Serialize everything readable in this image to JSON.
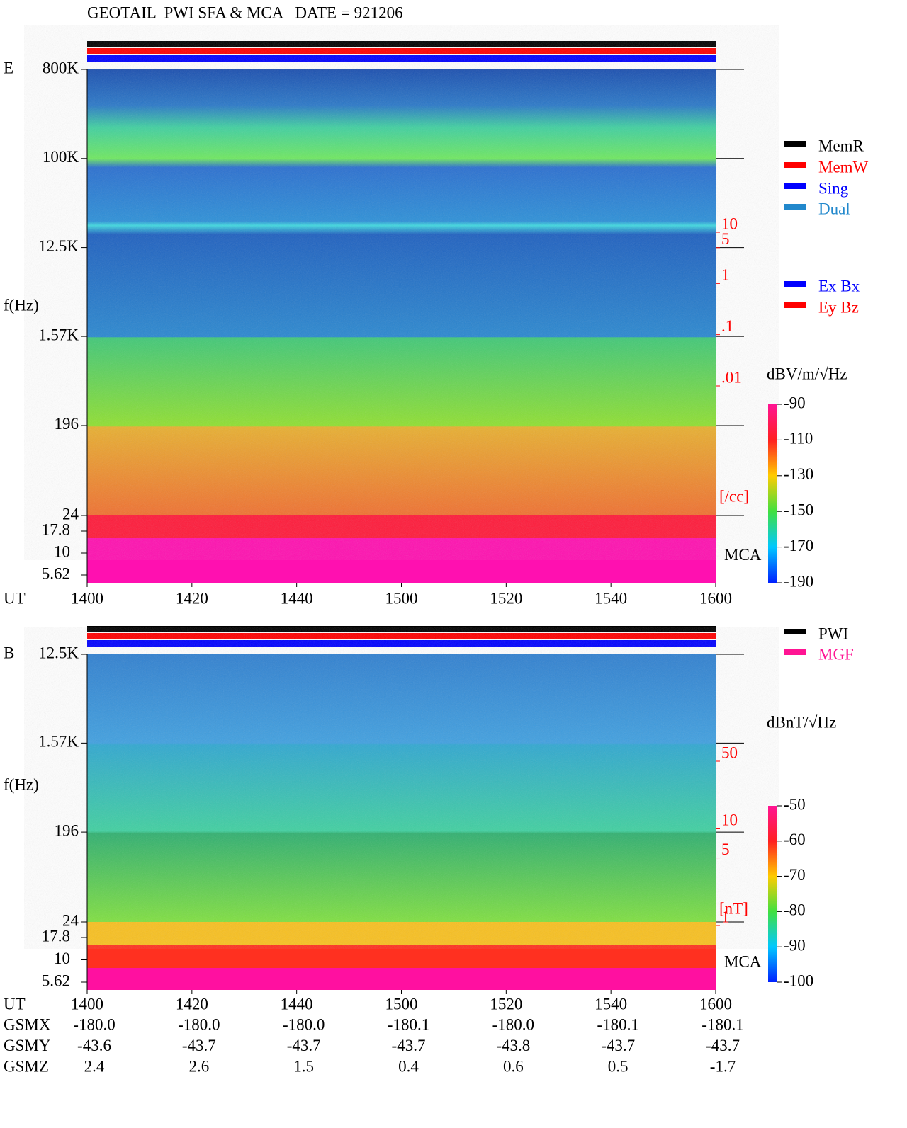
{
  "title": "GEOTAIL  PWI SFA & MCA   DATE = 921206",
  "chart_data": [
    {
      "type": "spectrogram",
      "panel_label": "E",
      "y_label": "f(Hz)",
      "x_label": "UT",
      "xtick_labels": [
        "1400",
        "1420",
        "1440",
        "1500",
        "1520",
        "1540",
        "1600"
      ],
      "yscale": "log",
      "ylim": [
        24,
        800000
      ],
      "yticks": [
        {
          "value": 800000,
          "label": "800K"
        },
        {
          "value": 100000,
          "label": "100K"
        },
        {
          "value": 12500,
          "label": "12.5K"
        },
        {
          "value": 1570,
          "label": "1.57K"
        },
        196,
        24
      ],
      "mca_label": "MCA",
      "mca_ticks": [
        17.8,
        10,
        5.62
      ],
      "y2ticks": [
        10,
        5,
        1,
        {
          "value": 0.1,
          "label": ".1"
        },
        {
          "value": 0.01,
          "label": ".01"
        }
      ],
      "y2_label": "[/cc]",
      "y2_color": "#ff0000",
      "colorbar": {
        "label": "dBV/m/√Hz",
        "lim": [
          -190,
          -90
        ],
        "ticks": [
          -90,
          -110,
          -130,
          -150,
          -170,
          -190
        ]
      },
      "legend": [
        {
          "name": "MemR",
          "color": "#000000"
        },
        {
          "name": "MemW",
          "color": "#ff0000"
        },
        {
          "name": "Sing",
          "color": "#0000ff"
        },
        {
          "name": "Dual",
          "color": "#2288cc"
        }
      ],
      "legend2": [
        {
          "name": "Ex Bx",
          "color": "#0000ff"
        },
        {
          "name": "Ey Bz",
          "color": "#ff0000"
        }
      ]
    },
    {
      "type": "spectrogram",
      "panel_label": "B",
      "y_label": "f(Hz)",
      "x_label": "UT",
      "xtick_labels": [
        "1400",
        "1420",
        "1440",
        "1500",
        "1520",
        "1540",
        "1600"
      ],
      "yscale": "log",
      "ylim": [
        24,
        12500
      ],
      "yticks": [
        {
          "value": 12500,
          "label": "12.5K"
        },
        {
          "value": 1570,
          "label": "1.57K"
        },
        196,
        24
      ],
      "mca_label": "MCA",
      "mca_ticks": [
        17.8,
        10,
        5.62
      ],
      "y2ticks": [
        50,
        10,
        5,
        1
      ],
      "y2_label": "[nT]",
      "y2_color": "#ff0000",
      "colorbar": {
        "label": "dBnT/√Hz",
        "lim": [
          -100,
          -50
        ],
        "ticks": [
          -50,
          -60,
          -70,
          -80,
          -90,
          -100
        ]
      },
      "legend": [
        {
          "name": "PWI",
          "color": "#000000"
        },
        {
          "name": "MGF",
          "color": "#ff1493"
        }
      ]
    }
  ],
  "orbit": {
    "rows": [
      {
        "label": "GSMX",
        "values": [
          "-180.0",
          "-180.0",
          "-180.0",
          "-180.1",
          "-180.0",
          "-180.1",
          "-180.1"
        ]
      },
      {
        "label": "GSMY",
        "values": [
          "-43.6",
          "-43.7",
          "-43.7",
          "-43.7",
          "-43.8",
          "-43.7",
          "-43.7"
        ]
      },
      {
        "label": "GSMZ",
        "values": [
          "2.4",
          "2.6",
          "1.5",
          "0.4",
          "0.6",
          "0.5",
          "-1.7"
        ]
      }
    ]
  }
}
